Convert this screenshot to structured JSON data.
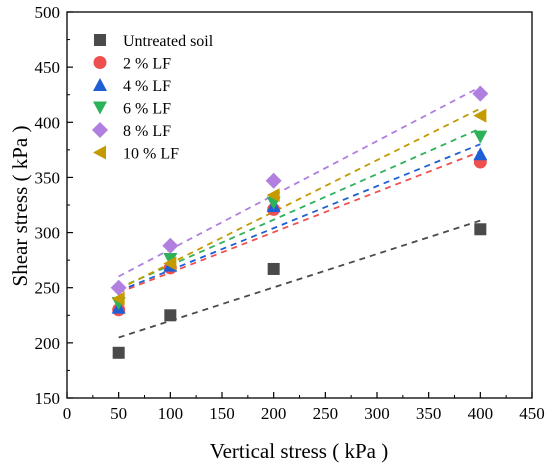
{
  "chart_data": {
    "type": "scatter",
    "xlabel": "Vertical stress ( kPa )",
    "ylabel": "Shear stress ( kPa )",
    "xlim": [
      0,
      450
    ],
    "ylim": [
      150,
      500
    ],
    "xticks": [
      0,
      50,
      100,
      150,
      200,
      250,
      300,
      350,
      400,
      450
    ],
    "yticks": [
      150,
      200,
      250,
      300,
      350,
      400,
      450,
      500
    ],
    "legend_position": "top-left",
    "grid": false,
    "trendlines": "linear fit per series (dashed)",
    "series": [
      {
        "name": "Untreated soil",
        "marker": "square",
        "color": "#4a4a4a",
        "x": [
          50,
          100,
          200,
          400
        ],
        "y": [
          191,
          225,
          267,
          303
        ]
      },
      {
        "name": "2 % LF",
        "marker": "circle",
        "color": "#ef4f4f",
        "x": [
          50,
          100,
          200,
          400
        ],
        "y": [
          230,
          268,
          321,
          364
        ]
      },
      {
        "name": "4 % LF",
        "marker": "triangle-up",
        "color": "#1f5fd6",
        "x": [
          50,
          100,
          200,
          400
        ],
        "y": [
          232,
          270,
          324,
          371
        ]
      },
      {
        "name": "6 % LF",
        "marker": "triangle-down",
        "color": "#2db25a",
        "x": [
          50,
          100,
          200,
          400
        ],
        "y": [
          236,
          276,
          327,
          387
        ]
      },
      {
        "name": "8 % LF",
        "marker": "diamond",
        "color": "#b07fe0",
        "x": [
          50,
          100,
          200,
          400
        ],
        "y": [
          250,
          288,
          347,
          426
        ]
      },
      {
        "name": "10 % LF",
        "marker": "triangle-left",
        "color": "#c49a00",
        "x": [
          50,
          100,
          200,
          400
        ],
        "y": [
          240,
          272,
          334,
          406
        ]
      }
    ]
  }
}
